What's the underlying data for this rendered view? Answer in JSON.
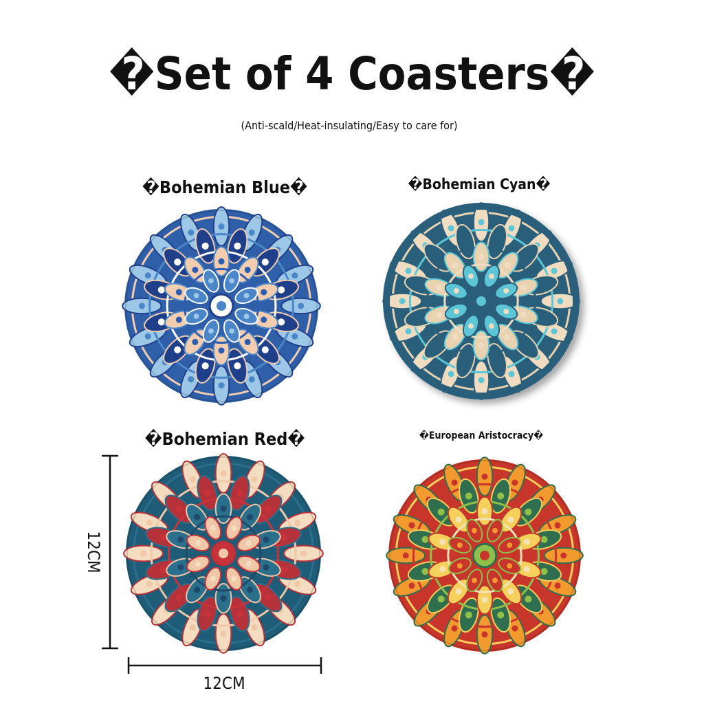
{
  "header": {
    "title": "�Set of 4 Coasters�",
    "subtitle": "(Anti-scald/Heat-insulating/Easy to care for)"
  },
  "coasters": [
    {
      "label": "�Bohemian Blue�"
    },
    {
      "label": "�Bohemian Cyan�"
    },
    {
      "label": "�Bohemian Red�"
    },
    {
      "label": "�European Aristocracy�"
    }
  ],
  "dimensions": {
    "height": "12CM",
    "width": "12CM"
  }
}
